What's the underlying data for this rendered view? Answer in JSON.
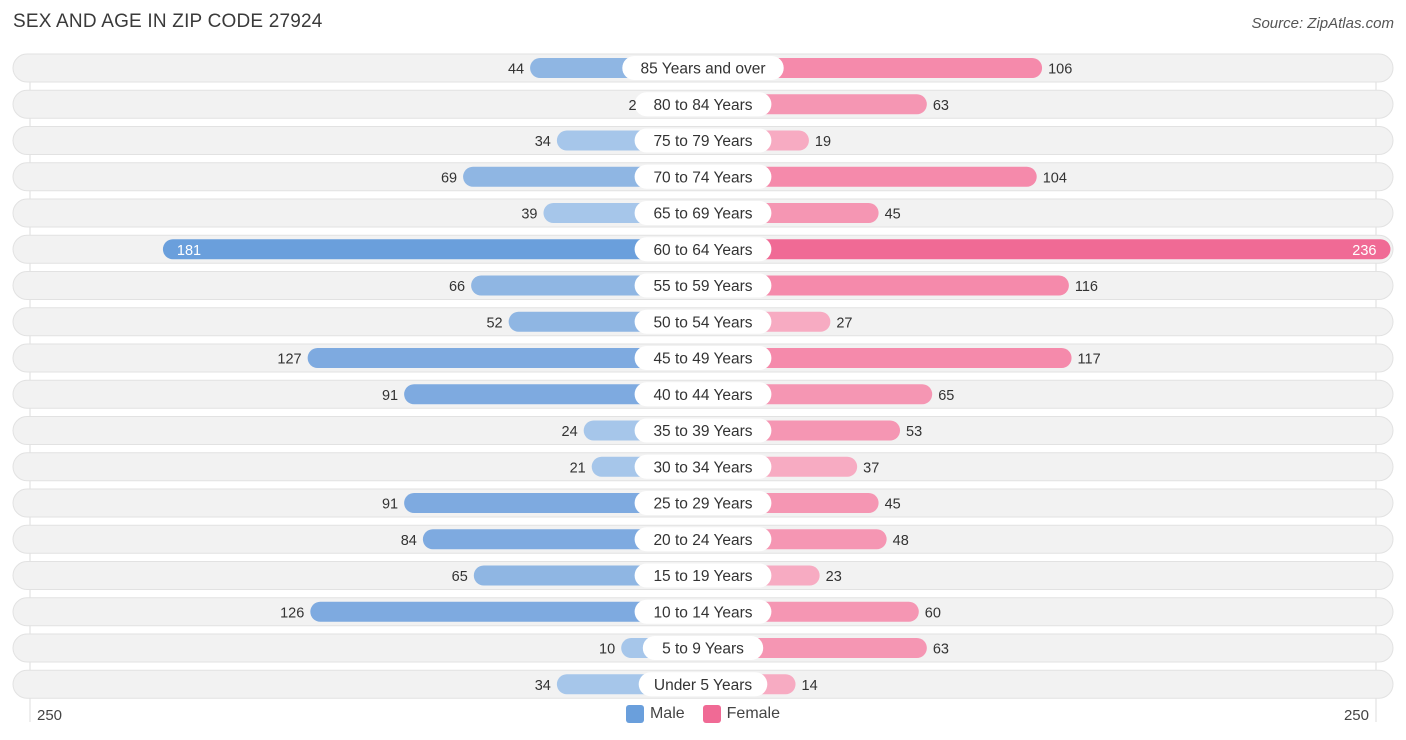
{
  "title": "SEX AND AGE IN ZIP CODE 27924",
  "source": "Source: ZipAtlas.com",
  "colors": {
    "male": "#8fb6e3",
    "male_strong": "#6a9fdc",
    "female": "#f596b3",
    "female_strong": "#f06a95",
    "row_bg": "#f2f2f2"
  },
  "legend": {
    "male": "Male",
    "female": "Female"
  },
  "axis": {
    "left": "250",
    "right": "250"
  },
  "chart_data": {
    "type": "bar",
    "orientation": "horizontal-butterfly",
    "categories": [
      "85 Years and over",
      "80 to 84 Years",
      "75 to 79 Years",
      "70 to 74 Years",
      "65 to 69 Years",
      "60 to 64 Years",
      "55 to 59 Years",
      "50 to 54 Years",
      "45 to 49 Years",
      "40 to 44 Years",
      "35 to 39 Years",
      "30 to 34 Years",
      "25 to 29 Years",
      "20 to 24 Years",
      "15 to 19 Years",
      "10 to 14 Years",
      "5 to 9 Years",
      "Under 5 Years"
    ],
    "series": [
      {
        "name": "Male",
        "values": [
          44,
          2,
          34,
          69,
          39,
          181,
          66,
          52,
          127,
          91,
          24,
          21,
          91,
          84,
          65,
          126,
          10,
          34
        ]
      },
      {
        "name": "Female",
        "values": [
          106,
          63,
          19,
          104,
          45,
          236,
          116,
          27,
          117,
          65,
          53,
          37,
          45,
          48,
          23,
          60,
          63,
          14
        ]
      }
    ],
    "xlim": [
      -250,
      250
    ],
    "legend_position": "bottom-center"
  }
}
